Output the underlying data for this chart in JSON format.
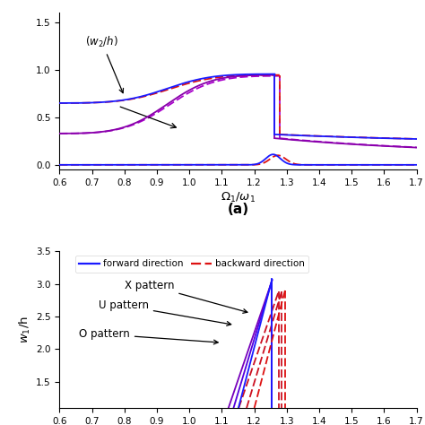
{
  "fig_width": 4.74,
  "fig_height": 4.74,
  "dpi": 100,
  "top_panel": {
    "xlim": [
      0.6,
      1.7
    ],
    "ylim": [
      -0.05,
      1.6
    ],
    "xticks": [
      0.6,
      0.7,
      0.8,
      0.9,
      1.0,
      1.1,
      1.2,
      1.3,
      1.4,
      1.5,
      1.6,
      1.7
    ],
    "yticks": [
      0.0,
      0.5,
      1.0,
      1.5
    ],
    "xlabel": "$\\Omega_1/\\omega_1$",
    "label_a": "(a)",
    "forward_color": "#1a1aff",
    "backward_color": "#dd1111",
    "purple_colors": [
      "#8800aa",
      "#aa00cc"
    ],
    "line_width": 1.3,
    "jump_fwd": 1.263,
    "jump_bwd": 1.278
  },
  "bottom_panel": {
    "xlim": [
      0.6,
      1.7
    ],
    "ylim": [
      1.1,
      3.5
    ],
    "xticks": [
      0.6,
      0.7,
      0.8,
      0.9,
      1.0,
      1.1,
      1.2,
      1.3,
      1.4,
      1.5,
      1.6,
      1.7
    ],
    "yticks": [
      1.5,
      2.0,
      2.5,
      3.0,
      3.5
    ],
    "ylabel": "$w_1$/h",
    "forward_color": "#1a1aff",
    "backward_color": "#dd1111",
    "purple_colors": [
      "#8800aa",
      "#aa00cc"
    ],
    "line_width": 1.3,
    "jump_fwd": 1.255,
    "jump_bwd1": 1.275,
    "jump_bwd2": 1.285,
    "jump_bwd3": 1.295
  }
}
